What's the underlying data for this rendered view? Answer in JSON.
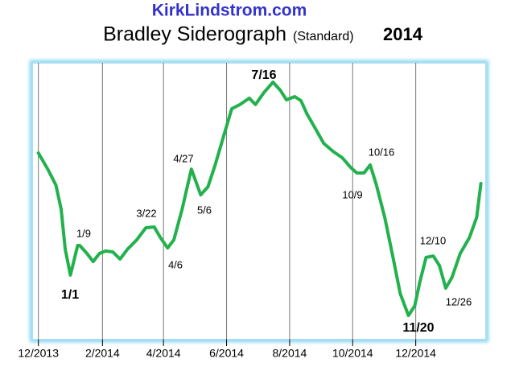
{
  "chart_data": {
    "type": "line",
    "source": "KirkLindstrom.com",
    "title": "Bradley Siderograph",
    "title_note": "(Standard)",
    "title_year": "2014",
    "x": [
      "2013-12-01",
      "2013-12-10",
      "2013-12-18",
      "2013-12-23",
      "2013-12-27",
      "2014-01-01",
      "2014-01-08",
      "2014-01-10",
      "2014-01-17",
      "2014-01-23",
      "2014-01-29",
      "2014-02-04",
      "2014-02-11",
      "2014-02-18",
      "2014-02-25",
      "2014-03-06",
      "2014-03-15",
      "2014-03-23",
      "2014-03-29",
      "2014-04-05",
      "2014-04-11",
      "2014-04-19",
      "2014-04-28",
      "2014-05-03",
      "2014-05-07",
      "2014-05-14",
      "2014-05-21",
      "2014-05-29",
      "2014-06-06",
      "2014-06-14",
      "2014-06-23",
      "2014-06-29",
      "2014-07-07",
      "2014-07-16",
      "2014-07-23",
      "2014-07-29",
      "2014-08-06",
      "2014-08-12",
      "2014-08-18",
      "2014-08-26",
      "2014-09-03",
      "2014-09-12",
      "2014-09-21",
      "2014-09-29",
      "2014-10-05",
      "2014-10-12",
      "2014-10-18",
      "2014-10-24",
      "2014-11-01",
      "2014-11-09",
      "2014-11-16",
      "2014-11-24",
      "2014-11-30",
      "2014-12-05",
      "2014-12-11",
      "2014-12-18",
      "2014-12-24",
      "2014-12-30",
      "2015-01-05",
      "2015-01-13",
      "2015-01-22",
      "2015-01-29",
      "2015-02-02"
    ],
    "series": [
      {
        "name": "Bradley Siderograph",
        "color": "#22b14c",
        "values": [
          67.4,
          61.6,
          55.8,
          47.1,
          32.6,
          23.3,
          34.0,
          34.0,
          31.1,
          28.2,
          31.1,
          32.0,
          31.7,
          29.1,
          32.6,
          36.0,
          40.4,
          40.7,
          36.9,
          33.1,
          36.0,
          47.1,
          61.6,
          56.4,
          52.3,
          55.2,
          63.1,
          73.3,
          83.4,
          84.9,
          87.2,
          84.9,
          89.2,
          93.0,
          90.1,
          86.6,
          87.8,
          86.3,
          81.4,
          76.2,
          70.9,
          68.0,
          65.7,
          62.2,
          60.2,
          60.2,
          63.1,
          55.8,
          44.2,
          29.7,
          16.6,
          8.7,
          12.2,
          20.9,
          29.7,
          30.2,
          26.7,
          18.6,
          22.4,
          31.1,
          36.9,
          44.2,
          56.4
        ]
      }
    ],
    "xlim": [
      "2013-11-25",
      "2015-02-07"
    ],
    "xticks": [
      {
        "value": "2013-12-01",
        "label": "12/2013"
      },
      {
        "value": "2014-02-01",
        "label": "2/2014"
      },
      {
        "value": "2014-04-01",
        "label": "4/2014"
      },
      {
        "value": "2014-06-01",
        "label": "6/2014"
      },
      {
        "value": "2014-08-01",
        "label": "8/2014"
      },
      {
        "value": "2014-10-01",
        "label": "10/2014"
      },
      {
        "value": "2014-12-01",
        "label": "12/2014"
      }
    ],
    "ylim": [
      0,
      100
    ],
    "grid": true,
    "annotations": [
      "1/1",
      "1/9",
      "3/22",
      "4/6",
      "4/27",
      "5/6",
      "7/16",
      "10/9",
      "10/16",
      "11/20",
      "12/10",
      "12/26"
    ]
  }
}
